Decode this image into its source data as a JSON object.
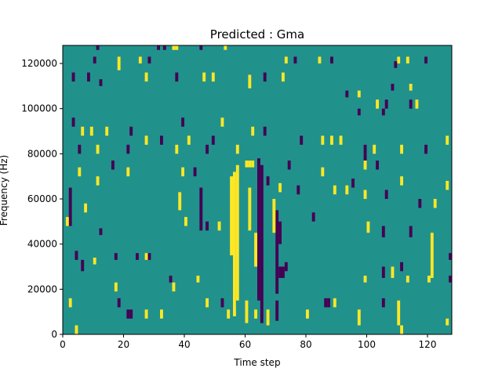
{
  "chart_data": {
    "type": "heatmap",
    "title": "Predicted : Gma",
    "xlabel": "Time step",
    "ylabel": "Frequency (Hz)",
    "xlim": [
      0,
      128
    ],
    "ylim": [
      0,
      128000
    ],
    "xticks": [
      0,
      20,
      40,
      60,
      80,
      100,
      120
    ],
    "xtick_labels": [
      "0",
      "20",
      "40",
      "60",
      "80",
      "100",
      "120"
    ],
    "yticks": [
      0,
      20000,
      40000,
      60000,
      80000,
      100000,
      120000
    ],
    "ytick_labels": [
      "0",
      "20000",
      "40000",
      "60000",
      "80000",
      "100000",
      "120000"
    ],
    "background_value": 0.5,
    "colors": {
      "low": "#440154",
      "mid": "#21918c",
      "high": "#fde725"
    },
    "segments_format": [
      "time_step",
      "freq_start_hz",
      "freq_end_hz",
      "value"
    ],
    "segments": [
      [
        11,
        126000,
        128000,
        0
      ],
      [
        10,
        120000,
        123000,
        0
      ],
      [
        18,
        117000,
        123000,
        1
      ],
      [
        25,
        120000,
        123000,
        1
      ],
      [
        28,
        120000,
        123000,
        0
      ],
      [
        31,
        126000,
        128000,
        0
      ],
      [
        33,
        126000,
        128000,
        0
      ],
      [
        36,
        126000,
        128000,
        1
      ],
      [
        37,
        126000,
        128000,
        1
      ],
      [
        45,
        126000,
        128000,
        0
      ],
      [
        53,
        126000,
        128000,
        1
      ],
      [
        73,
        120000,
        123000,
        1
      ],
      [
        76,
        120000,
        123000,
        0
      ],
      [
        84,
        120000,
        123000,
        1
      ],
      [
        88,
        120000,
        123000,
        0
      ],
      [
        110,
        120000,
        123000,
        1
      ],
      [
        113,
        120000,
        123000,
        1
      ],
      [
        119,
        120000,
        123000,
        0
      ],
      [
        3,
        112000,
        116000,
        0
      ],
      [
        8,
        112000,
        116000,
        0
      ],
      [
        12,
        110000,
        113000,
        0
      ],
      [
        27,
        112000,
        116000,
        1
      ],
      [
        37,
        112000,
        116000,
        0
      ],
      [
        46,
        112000,
        116000,
        1
      ],
      [
        49,
        112000,
        116000,
        1
      ],
      [
        61,
        109000,
        115000,
        1
      ],
      [
        66,
        112000,
        116000,
        0
      ],
      [
        72,
        112000,
        116000,
        1
      ],
      [
        93,
        105000,
        108000,
        0
      ],
      [
        97,
        105000,
        108000,
        1
      ],
      [
        103,
        100000,
        104000,
        1
      ],
      [
        106,
        100000,
        104000,
        0
      ],
      [
        109,
        118000,
        121000,
        0
      ],
      [
        108,
        108000,
        111000,
        0
      ],
      [
        114,
        108000,
        111000,
        1
      ],
      [
        114,
        100000,
        104000,
        0
      ],
      [
        116,
        100000,
        104000,
        1
      ],
      [
        97,
        97000,
        100000,
        0
      ],
      [
        105,
        97000,
        100000,
        0
      ],
      [
        3,
        92000,
        96000,
        0
      ],
      [
        6,
        88000,
        92000,
        1
      ],
      [
        9,
        88000,
        92000,
        1
      ],
      [
        14,
        88000,
        92000,
        1
      ],
      [
        22,
        88000,
        92000,
        0
      ],
      [
        39,
        92000,
        96000,
        0
      ],
      [
        52,
        92000,
        96000,
        1
      ],
      [
        62,
        88000,
        92000,
        1
      ],
      [
        66,
        88000,
        92000,
        0
      ],
      [
        78,
        84000,
        88000,
        0
      ],
      [
        85,
        84000,
        88000,
        1
      ],
      [
        88,
        84000,
        88000,
        1
      ],
      [
        91,
        84000,
        88000,
        1
      ],
      [
        27,
        84000,
        88000,
        1
      ],
      [
        32,
        84000,
        88000,
        0
      ],
      [
        37,
        80000,
        84000,
        1
      ],
      [
        41,
        84000,
        88000,
        1
      ],
      [
        47,
        80000,
        84000,
        0
      ],
      [
        49,
        84000,
        88000,
        0
      ],
      [
        57,
        80000,
        84000,
        1
      ],
      [
        5,
        80000,
        84000,
        0
      ],
      [
        11,
        80000,
        84000,
        1
      ],
      [
        21,
        80000,
        84000,
        0
      ],
      [
        99,
        80000,
        84000,
        0
      ],
      [
        102,
        80000,
        84000,
        1
      ],
      [
        111,
        80000,
        84000,
        1
      ],
      [
        119,
        80000,
        84000,
        0
      ],
      [
        126,
        84000,
        88000,
        1
      ],
      [
        99,
        76000,
        80000,
        0
      ],
      [
        4,
        33000,
        37000,
        0
      ],
      [
        6,
        28000,
        33000,
        0
      ],
      [
        10,
        31000,
        34000,
        1
      ],
      [
        12,
        44000,
        47000,
        0
      ],
      [
        17,
        33000,
        36000,
        0
      ],
      [
        24,
        33000,
        36000,
        0
      ],
      [
        27,
        33000,
        36000,
        1
      ],
      [
        28,
        33000,
        36000,
        0
      ],
      [
        18,
        12000,
        16000,
        0
      ],
      [
        21,
        7000,
        11000,
        0
      ],
      [
        22,
        7000,
        11000,
        0
      ],
      [
        2,
        12000,
        16000,
        1
      ],
      [
        4,
        0,
        4000,
        1
      ],
      [
        17,
        19000,
        23000,
        1
      ],
      [
        35,
        23000,
        26000,
        0
      ],
      [
        36,
        19000,
        23000,
        1
      ],
      [
        32,
        7000,
        11000,
        1
      ],
      [
        27,
        7000,
        11000,
        1
      ],
      [
        44,
        23000,
        26000,
        1
      ],
      [
        47,
        12000,
        16000,
        1
      ],
      [
        52,
        12000,
        16000,
        0
      ],
      [
        54,
        7000,
        11000,
        1
      ],
      [
        56,
        12000,
        16000,
        0
      ],
      [
        60,
        5000,
        15000,
        1
      ],
      [
        63,
        7000,
        11000,
        1
      ],
      [
        67,
        4000,
        11000,
        1
      ],
      [
        70,
        6000,
        15000,
        0
      ],
      [
        80,
        7000,
        11000,
        1
      ],
      [
        86,
        12000,
        16000,
        0
      ],
      [
        87,
        12000,
        16000,
        0
      ],
      [
        89,
        12000,
        16000,
        1
      ],
      [
        97,
        4000,
        11000,
        1
      ],
      [
        105,
        12000,
        16000,
        0
      ],
      [
        110,
        4000,
        15000,
        1
      ],
      [
        111,
        0,
        4000,
        1
      ],
      [
        126,
        4000,
        7000,
        1
      ],
      [
        99,
        23000,
        26000,
        1
      ],
      [
        105,
        25000,
        30000,
        0
      ],
      [
        108,
        25000,
        30000,
        1
      ],
      [
        111,
        28000,
        32000,
        0
      ],
      [
        113,
        23000,
        26000,
        1
      ],
      [
        121,
        25000,
        45000,
        1
      ],
      [
        127,
        23000,
        26000,
        0
      ],
      [
        127,
        33000,
        36000,
        0
      ],
      [
        120,
        23000,
        26000,
        1
      ],
      [
        38,
        55000,
        63000,
        1
      ],
      [
        39,
        70000,
        74000,
        1
      ],
      [
        40,
        48000,
        52000,
        1
      ],
      [
        2,
        48000,
        65000,
        0
      ],
      [
        1,
        48000,
        52000,
        1
      ],
      [
        5,
        70000,
        74000,
        1
      ],
      [
        7,
        54000,
        58000,
        1
      ],
      [
        11,
        66000,
        70000,
        1
      ],
      [
        16,
        73000,
        77000,
        0
      ],
      [
        21,
        70000,
        74000,
        1
      ],
      [
        43,
        70000,
        74000,
        0
      ],
      [
        45,
        46000,
        65000,
        0
      ],
      [
        47,
        46000,
        50000,
        0
      ],
      [
        51,
        46000,
        50000,
        1
      ],
      [
        61,
        46000,
        65000,
        1
      ],
      [
        67,
        66000,
        70000,
        0
      ],
      [
        71,
        63000,
        67000,
        1
      ],
      [
        71,
        40000,
        50000,
        0
      ],
      [
        74,
        73000,
        77000,
        0
      ],
      [
        77,
        62000,
        66000,
        0
      ],
      [
        82,
        50000,
        54000,
        0
      ],
      [
        85,
        70000,
        74000,
        1
      ],
      [
        89,
        62000,
        66000,
        1
      ],
      [
        93,
        62000,
        66000,
        1
      ],
      [
        95,
        65000,
        69000,
        0
      ],
      [
        99,
        60000,
        64000,
        1
      ],
      [
        100,
        45000,
        50000,
        1
      ],
      [
        99,
        73000,
        77000,
        1
      ],
      [
        103,
        73000,
        77000,
        0
      ],
      [
        106,
        60000,
        64000,
        0
      ],
      [
        105,
        43000,
        48000,
        0
      ],
      [
        111,
        66000,
        70000,
        1
      ],
      [
        114,
        43000,
        48000,
        0
      ],
      [
        122,
        56000,
        60000,
        1
      ],
      [
        126,
        64000,
        68000,
        1
      ],
      [
        117,
        56000,
        60000,
        0
      ],
      [
        55,
        35000,
        70000,
        1
      ],
      [
        56,
        8000,
        72000,
        1
      ],
      [
        57,
        15000,
        75000,
        1
      ],
      [
        60,
        74000,
        77000,
        1
      ],
      [
        61,
        74000,
        77000,
        1
      ],
      [
        62,
        74000,
        77000,
        1
      ],
      [
        64,
        15000,
        78000,
        0
      ],
      [
        65,
        5000,
        75000,
        0
      ],
      [
        70,
        18000,
        55000,
        0
      ],
      [
        71,
        25000,
        30000,
        0
      ],
      [
        72,
        25000,
        30000,
        0
      ],
      [
        73,
        28000,
        32000,
        0
      ],
      [
        69,
        45000,
        60000,
        1
      ],
      [
        63,
        30000,
        45000,
        1
      ]
    ]
  }
}
